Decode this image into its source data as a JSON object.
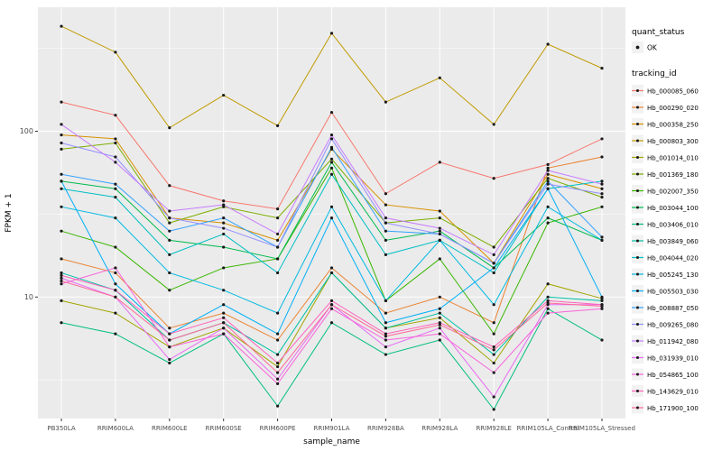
{
  "chart_data": {
    "type": "line",
    "title": "",
    "xlabel": "sample_name",
    "ylabel": "FPKM + 1",
    "y_scale": "log10",
    "y_domain": [
      1.85,
      560
    ],
    "y_major_gridlines": [
      10,
      100
    ],
    "y_minor_gridlines": [
      3.162,
      31.62,
      316.2
    ],
    "y_tick_labels": [
      {
        "value": 10,
        "label": "10"
      },
      {
        "value": 100,
        "label": "100"
      }
    ],
    "grid": true,
    "legend_position": "right",
    "point_color": "#1a1a1a",
    "style": {
      "panel_bg": "#EBEBEB",
      "gridline_color": "#FFFFFF",
      "tick_text_color": "#4D4D4D",
      "axis_title_color": "#000000",
      "legend_key_bg": "#F2F2F2"
    },
    "legend_quant": {
      "title": "quant_status",
      "entries": [
        {
          "label": "OK",
          "shape": "point"
        }
      ]
    },
    "legend_tracking": {
      "title": "tracking_id"
    },
    "categories": [
      "PB350LA",
      "RRIM600LA",
      "RRIM600LE",
      "RRIM600SE",
      "RRIM600PE",
      "RRIM901LA",
      "RRIM928BA",
      "RRIM928LA",
      "RRIM928LE",
      "RRIM105LA_Control",
      "RRIM105LA_Stressed"
    ],
    "series": [
      {
        "name": "Hb_000085_060",
        "color": "#F8766D",
        "values": [
          150,
          125,
          47,
          38,
          34,
          130,
          42,
          65,
          52,
          63,
          90
        ]
      },
      {
        "name": "Hb_000290_020",
        "color": "#EA8331",
        "values": [
          17,
          14,
          6.5,
          8,
          5.5,
          15,
          8,
          10,
          7,
          60,
          70
        ]
      },
      {
        "name": "Hb_000358_250",
        "color": "#D89000",
        "values": [
          95,
          90,
          30,
          28,
          22,
          78,
          36,
          33,
          16,
          55,
          45
        ]
      },
      {
        "name": "Hb_000803_300",
        "color": "#C09B00",
        "values": [
          430,
          300,
          105,
          165,
          108,
          390,
          150,
          210,
          110,
          335,
          240
        ]
      },
      {
        "name": "Hb_001014_010",
        "color": "#A3A500",
        "values": [
          9.5,
          8,
          5,
          6.5,
          3.8,
          14,
          6.5,
          7.5,
          4,
          12,
          9.8
        ]
      },
      {
        "name": "Hb_001369_180",
        "color": "#7CAE00",
        "values": [
          78,
          85,
          28,
          35,
          30,
          68,
          28,
          30,
          20,
          52,
          40
        ]
      },
      {
        "name": "Hb_002007_350",
        "color": "#39B600",
        "values": [
          25,
          20,
          11,
          15,
          17,
          60,
          9.5,
          17,
          6,
          28,
          35
        ]
      },
      {
        "name": "Hb_003044_100",
        "color": "#00BB4E",
        "values": [
          50,
          45,
          22,
          20,
          17,
          65,
          22,
          25,
          15,
          30,
          22
        ]
      },
      {
        "name": "Hb_003406_010",
        "color": "#00BF7D",
        "values": [
          7,
          6,
          4,
          6,
          2.2,
          7,
          4.5,
          5.5,
          2.1,
          8.5,
          5.5
        ]
      },
      {
        "name": "Hb_003849_060",
        "color": "#00C1A3",
        "values": [
          14,
          11,
          5.5,
          7,
          4.5,
          14,
          6.5,
          8,
          4.5,
          10,
          9.5
        ]
      },
      {
        "name": "Hb_004044_020",
        "color": "#00BFC4",
        "values": [
          45,
          40,
          18,
          24,
          14,
          55,
          18,
          22,
          14,
          45,
          50
        ]
      },
      {
        "name": "Hb_005245_130",
        "color": "#00BAE0",
        "values": [
          35,
          30,
          14,
          11,
          8,
          35,
          9.5,
          22,
          9,
          35,
          22
        ]
      },
      {
        "name": "Hb_005503_030",
        "color": "#00B0F6",
        "values": [
          50,
          12,
          6,
          9,
          6,
          30,
          7,
          8.5,
          15,
          45,
          10
        ]
      },
      {
        "name": "Hb_008887_050",
        "color": "#35A2FF",
        "values": [
          55,
          48,
          25,
          30,
          20,
          80,
          25,
          24,
          16,
          50,
          23
        ]
      },
      {
        "name": "Hb_009265_080",
        "color": "#9590FF",
        "values": [
          85,
          70,
          30,
          26,
          20,
          90,
          28,
          24,
          16,
          48,
          42
        ]
      },
      {
        "name": "Hb_011942_080",
        "color": "#C77CFF",
        "values": [
          110,
          65,
          33,
          36,
          24,
          95,
          30,
          26,
          18,
          58,
          48
        ]
      },
      {
        "name": "Hb_031939_010",
        "color": "#E76BF3",
        "values": [
          13,
          10,
          4.2,
          6.5,
          3.2,
          9,
          5,
          6.5,
          2.5,
          9,
          9
        ]
      },
      {
        "name": "Hb_054865_100",
        "color": "#FA62DB",
        "values": [
          12,
          15,
          5,
          6,
          3,
          8.5,
          5.5,
          6,
          3.5,
          8,
          8.5
        ]
      },
      {
        "name": "Hb_143629_010",
        "color": "#FF62BC",
        "values": [
          13.5,
          11,
          6,
          7.5,
          4,
          9.5,
          6,
          7,
          5,
          9.5,
          9
        ]
      },
      {
        "name": "Hb_171900_100",
        "color": "#FF6A98",
        "values": [
          12.5,
          10,
          5.5,
          7,
          3.5,
          9,
          5.8,
          6.8,
          4.8,
          9.2,
          8.8
        ]
      }
    ]
  }
}
